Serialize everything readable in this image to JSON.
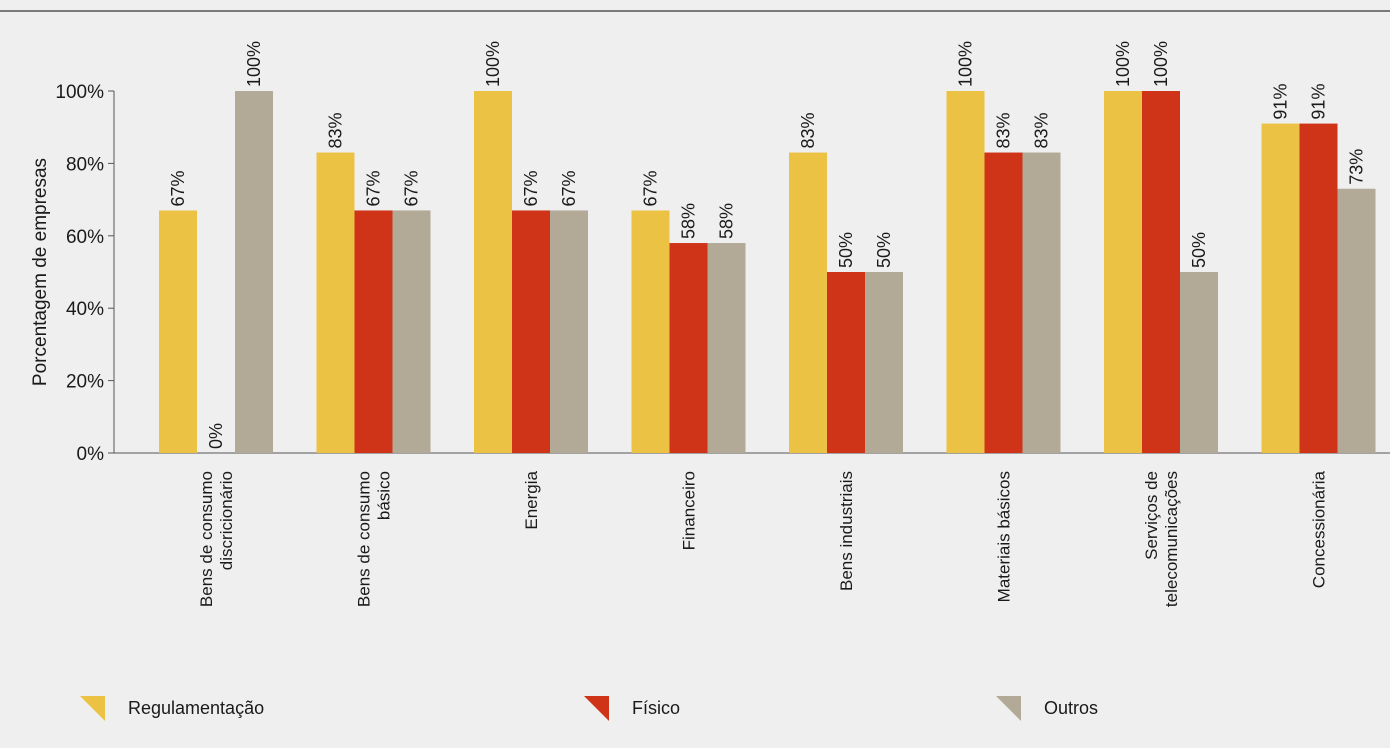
{
  "chart_data": {
    "type": "bar",
    "ylabel": "Porcentagem de empresas",
    "ylim": [
      0,
      100
    ],
    "yticks": [
      "0%",
      "20%",
      "40%",
      "60%",
      "80%",
      "100%"
    ],
    "legend_position": "bottom",
    "grid": false,
    "categories": [
      [
        "Bens de consumo",
        "discricionário"
      ],
      [
        "Bens de consumo",
        "básico"
      ],
      [
        "Energia"
      ],
      [
        "Financeiro"
      ],
      [
        "Bens  industriais"
      ],
      [
        "Materiais básicos"
      ],
      [
        "Serviços de",
        "telecomunicações"
      ],
      [
        "Concessionária"
      ]
    ],
    "series": [
      {
        "name": "Regulamentação",
        "color": "#ecc244",
        "values": [
          67,
          83,
          100,
          67,
          83,
          100,
          100,
          91
        ],
        "labels": [
          "67%",
          "83%",
          "100%",
          "67%",
          "83%",
          "100%",
          "100%",
          "91%"
        ]
      },
      {
        "name": "Físico",
        "color": "#cf3418",
        "values": [
          0,
          67,
          67,
          58,
          50,
          83,
          100,
          91
        ],
        "labels": [
          "0%",
          "67%",
          "67%",
          "58%",
          "50%",
          "83%",
          "100%",
          "91%"
        ]
      },
      {
        "name": "Outros",
        "color": "#b2a997",
        "values": [
          100,
          67,
          67,
          58,
          50,
          83,
          50,
          73
        ],
        "labels": [
          "100%",
          "67%",
          "67%",
          "58%",
          "50%",
          "83%",
          "50%",
          "73%"
        ]
      }
    ]
  }
}
